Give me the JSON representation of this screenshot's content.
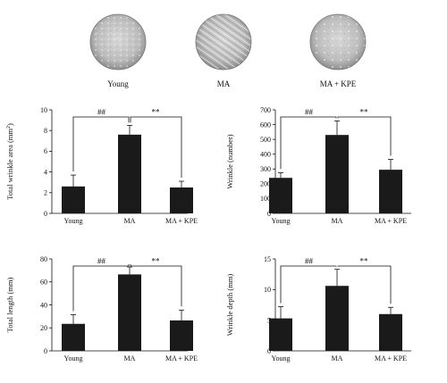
{
  "images": [
    {
      "label": "Young"
    },
    {
      "label": "MA"
    },
    {
      "label": "MA + KPE"
    }
  ],
  "chart_data": [
    {
      "type": "bar",
      "categories": [
        "Young",
        "MA",
        "MA + KPE"
      ],
      "values": [
        2.6,
        7.6,
        2.5
      ],
      "errors": [
        1.1,
        0.9,
        0.6
      ],
      "ylabel_main": "Total wrinkle area (mm",
      "ylabel_sup": "2",
      "ylabel_end": ")",
      "ylim": [
        0,
        10
      ],
      "yticks": [
        "0",
        "2",
        "4",
        "6",
        "8",
        "10"
      ],
      "significance": [
        "##",
        "**"
      ]
    },
    {
      "type": "bar",
      "categories": [
        "Young",
        "MA",
        "MA + KPE"
      ],
      "values": [
        240,
        530,
        295
      ],
      "errors": [
        35,
        95,
        70
      ],
      "ylabel_main": "Wrinkle (number)",
      "ylim": [
        0,
        700
      ],
      "yticks": [
        "0",
        "100",
        "200",
        "300",
        "400",
        "500",
        "600",
        "700"
      ],
      "significance": [
        "##",
        "**"
      ]
    },
    {
      "type": "bar",
      "categories": [
        "Young",
        "MA",
        "MA + KPE"
      ],
      "values": [
        23.5,
        66.5,
        26.5
      ],
      "errors": [
        8,
        6.5,
        9
      ],
      "ylabel_main": "Total length (mm)",
      "ylim": [
        0,
        80
      ],
      "yticks": [
        "0",
        "20",
        "40",
        "60",
        "80"
      ],
      "significance": [
        "##",
        "**"
      ]
    },
    {
      "type": "bar",
      "categories": [
        "Young",
        "MA",
        "MA + KPE"
      ],
      "values": [
        5.3,
        10.6,
        6.0
      ],
      "errors": [
        1.9,
        2.7,
        1.1
      ],
      "ylabel_main": "Wrinkle depth (mm)",
      "ylim": [
        0,
        15
      ],
      "yticks": [
        "0",
        "5",
        "10",
        "15"
      ],
      "significance": [
        "##",
        "**"
      ]
    }
  ]
}
